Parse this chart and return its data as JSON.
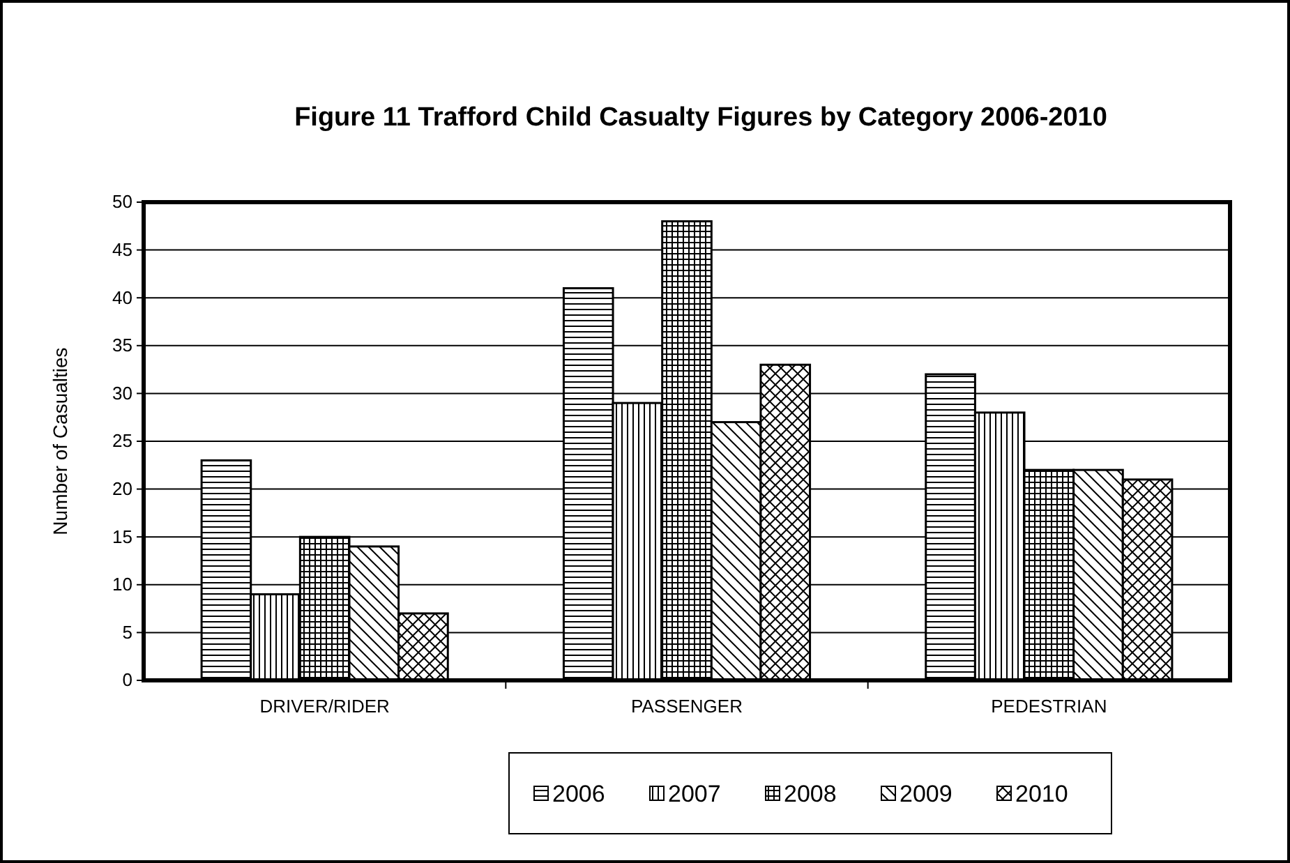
{
  "chart_data": {
    "type": "bar",
    "title": "Figure 11 Trafford Child Casualty Figures by Category 2006-2010",
    "ylabel": "Number of Casualties",
    "categories": [
      "DRIVER/RIDER",
      "PASSENGER",
      "PEDESTRIAN"
    ],
    "series": [
      {
        "name": "2006",
        "color": "#000000",
        "values": [
          23,
          41,
          32
        ]
      },
      {
        "name": "2007",
        "color": "#000000",
        "values": [
          9,
          29,
          28
        ]
      },
      {
        "name": "2008",
        "color": "#000000",
        "values": [
          15,
          48,
          22
        ]
      },
      {
        "name": "2009",
        "color": "#000000",
        "values": [
          14,
          27,
          22
        ]
      },
      {
        "name": "2010",
        "color": "#000000",
        "values": [
          7,
          33,
          21
        ]
      }
    ],
    "ylim": [
      0,
      50
    ],
    "yticks": [
      0,
      5,
      10,
      15,
      20,
      25,
      30,
      35,
      40,
      45,
      50
    ],
    "grid": "y",
    "legend": "bottom"
  }
}
